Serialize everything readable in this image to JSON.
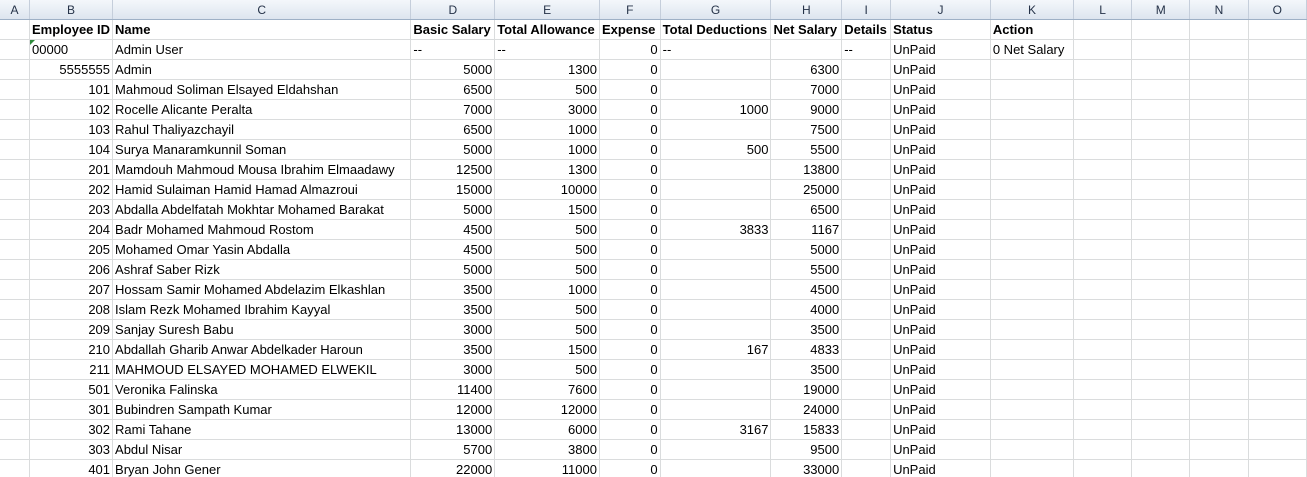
{
  "columns": [
    "A",
    "B",
    "C",
    "D",
    "E",
    "F",
    "G",
    "H",
    "I",
    "J",
    "K",
    "L",
    "M",
    "N",
    "O"
  ],
  "header": {
    "emp_id": "Employee ID",
    "name": "Name",
    "basic": "Basic Salary",
    "allowance": "Total Allowance",
    "expense": "Expense",
    "deductions": "Total Deductions",
    "net": "Net Salary",
    "details": "Details",
    "status": "Status",
    "action": "Action"
  },
  "rows": [
    {
      "id": "00000",
      "name": "Admin User",
      "basic": "--",
      "allow": "--",
      "exp": "0",
      "ded": "--",
      "net": "",
      "det": "--",
      "status": "UnPaid",
      "action": "0 Net Salary"
    },
    {
      "id": "5555555",
      "name": "Admin",
      "basic": "5000",
      "allow": "1300",
      "exp": "0",
      "ded": "",
      "net": "6300",
      "det": "",
      "status": "UnPaid",
      "action": ""
    },
    {
      "id": "101",
      "name": "Mahmoud  Soliman Elsayed Eldahshan",
      "basic": "6500",
      "allow": "500",
      "exp": "0",
      "ded": "",
      "net": "7000",
      "det": "",
      "status": "UnPaid",
      "action": ""
    },
    {
      "id": "102",
      "name": "Rocelle  Alicante Peralta",
      "basic": "7000",
      "allow": "3000",
      "exp": "0",
      "ded": "1000",
      "net": "9000",
      "det": "",
      "status": "UnPaid",
      "action": ""
    },
    {
      "id": "103",
      "name": "Rahul  Thaliyazchayil",
      "basic": "6500",
      "allow": "1000",
      "exp": "0",
      "ded": "",
      "net": "7500",
      "det": "",
      "status": "UnPaid",
      "action": ""
    },
    {
      "id": "104",
      "name": "Surya  Manaramkunnil Soman",
      "basic": "5000",
      "allow": "1000",
      "exp": "0",
      "ded": "500",
      "net": "5500",
      "det": "",
      "status": "UnPaid",
      "action": ""
    },
    {
      "id": "201",
      "name": "Mamdouh Mahmoud  Mousa Ibrahim Elmaadawy",
      "basic": "12500",
      "allow": "1300",
      "exp": "0",
      "ded": "",
      "net": "13800",
      "det": "",
      "status": "UnPaid",
      "action": ""
    },
    {
      "id": "202",
      "name": "Hamid Sulaiman  Hamid Hamad Almazroui",
      "basic": "15000",
      "allow": "10000",
      "exp": "0",
      "ded": "",
      "net": "25000",
      "det": "",
      "status": "UnPaid",
      "action": ""
    },
    {
      "id": "203",
      "name": "Abdalla Abdelfatah  Mokhtar Mohamed Barakat",
      "basic": "5000",
      "allow": "1500",
      "exp": "0",
      "ded": "",
      "net": "6500",
      "det": "",
      "status": "UnPaid",
      "action": ""
    },
    {
      "id": "204",
      "name": "Badr Mohamed  Mahmoud Rostom",
      "basic": "4500",
      "allow": "500",
      "exp": "0",
      "ded": "3833",
      "net": "1167",
      "det": "",
      "status": "UnPaid",
      "action": ""
    },
    {
      "id": "205",
      "name": "Mohamed Omar  Yasin Abdalla",
      "basic": "4500",
      "allow": "500",
      "exp": "0",
      "ded": "",
      "net": "5000",
      "det": "",
      "status": "UnPaid",
      "action": ""
    },
    {
      "id": "206",
      "name": "Ashraf Saber  Rizk",
      "basic": "5000",
      "allow": "500",
      "exp": "0",
      "ded": "",
      "net": "5500",
      "det": "",
      "status": "UnPaid",
      "action": ""
    },
    {
      "id": "207",
      "name": "Hossam Samir  Mohamed Abdelazim Elkashlan",
      "basic": "3500",
      "allow": "1000",
      "exp": "0",
      "ded": "",
      "net": "4500",
      "det": "",
      "status": "UnPaid",
      "action": ""
    },
    {
      "id": "208",
      "name": "Islam Rezk  Mohamed Ibrahim Kayyal",
      "basic": "3500",
      "allow": "500",
      "exp": "0",
      "ded": "",
      "net": "4000",
      "det": "",
      "status": "UnPaid",
      "action": ""
    },
    {
      "id": "209",
      "name": "Sanjay  Suresh Babu",
      "basic": "3000",
      "allow": "500",
      "exp": "0",
      "ded": "",
      "net": "3500",
      "det": "",
      "status": "UnPaid",
      "action": ""
    },
    {
      "id": "210",
      "name": "Abdallah Gharib  Anwar Abdelkader Haroun",
      "basic": "3500",
      "allow": "1500",
      "exp": "0",
      "ded": "167",
      "net": "4833",
      "det": "",
      "status": "UnPaid",
      "action": ""
    },
    {
      "id": "211",
      "name": "MAHMOUD ELSAYED  MOHAMED ELWEKIL",
      "basic": "3000",
      "allow": "500",
      "exp": "0",
      "ded": "",
      "net": "3500",
      "det": "",
      "status": "UnPaid",
      "action": ""
    },
    {
      "id": "501",
      "name": "Veronika  Falinska",
      "basic": "11400",
      "allow": "7600",
      "exp": "0",
      "ded": "",
      "net": "19000",
      "det": "",
      "status": "UnPaid",
      "action": ""
    },
    {
      "id": "301",
      "name": "Bubindren  Sampath Kumar",
      "basic": "12000",
      "allow": "12000",
      "exp": "0",
      "ded": "",
      "net": "24000",
      "det": "",
      "status": "UnPaid",
      "action": ""
    },
    {
      "id": "302",
      "name": "Rami  Tahane",
      "basic": "13000",
      "allow": "6000",
      "exp": "0",
      "ded": "3167",
      "net": "15833",
      "det": "",
      "status": "UnPaid",
      "action": ""
    },
    {
      "id": "303",
      "name": "Abdul  Nisar",
      "basic": "5700",
      "allow": "3800",
      "exp": "0",
      "ded": "",
      "net": "9500",
      "det": "",
      "status": "UnPaid",
      "action": ""
    },
    {
      "id": "401",
      "name": "Bryan  John Gener",
      "basic": "22000",
      "allow": "11000",
      "exp": "0",
      "ded": "",
      "net": "33000",
      "det": "",
      "status": "UnPaid",
      "action": ""
    }
  ]
}
